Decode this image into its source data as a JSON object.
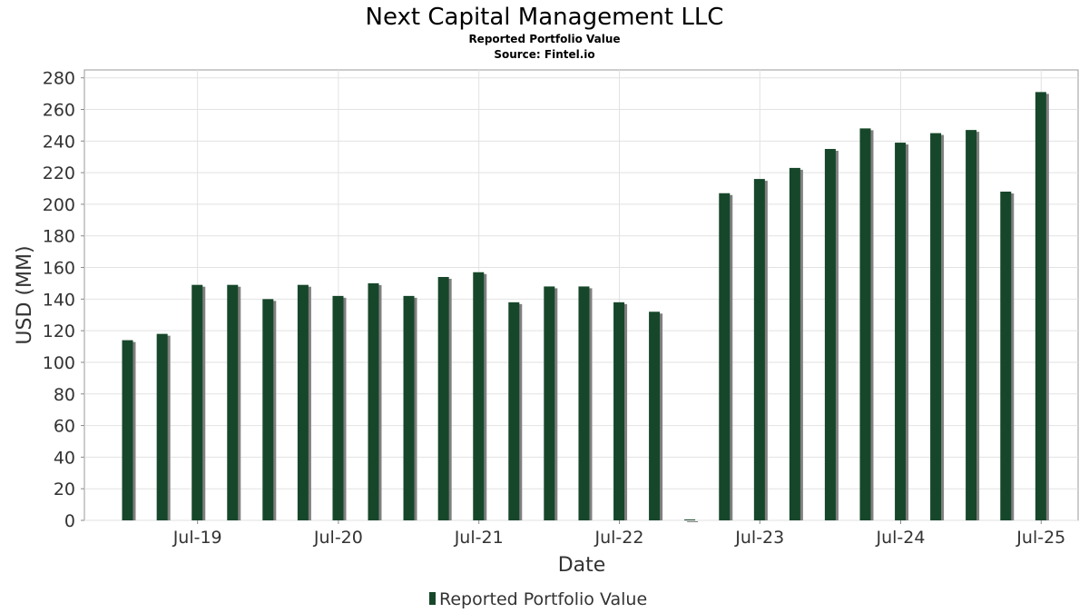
{
  "chart_data": {
    "type": "bar",
    "title": "Next Capital Management LLC",
    "subtitle": "Reported Portfolio Value",
    "source": "Source: Fintel.io",
    "xlabel": "Date",
    "ylabel": "USD (MM)",
    "ylim": [
      0,
      285
    ],
    "yticks": [
      0,
      20,
      40,
      60,
      80,
      100,
      120,
      140,
      160,
      180,
      200,
      220,
      240,
      260,
      280
    ],
    "x_range": [
      "2018-09-10",
      "2025-10-05"
    ],
    "xticks": [
      {
        "label": "Jul-19",
        "date": "2019-07-01"
      },
      {
        "label": "Jul-20",
        "date": "2020-07-01"
      },
      {
        "label": "Jul-21",
        "date": "2021-07-01"
      },
      {
        "label": "Jul-22",
        "date": "2022-07-01"
      },
      {
        "label": "Jul-23",
        "date": "2023-07-01"
      },
      {
        "label": "Jul-24",
        "date": "2024-07-01"
      },
      {
        "label": "Jul-25",
        "date": "2025-07-01"
      }
    ],
    "grid": true,
    "legend_position": "bottom-center",
    "series": [
      {
        "name": "Reported Portfolio Value",
        "color": "#17472a",
        "shadow_color": "#808080",
        "points": [
          {
            "date": "2018-12-31",
            "value": 114
          },
          {
            "date": "2019-03-31",
            "value": 118
          },
          {
            "date": "2019-06-30",
            "value": 149
          },
          {
            "date": "2019-09-30",
            "value": 149
          },
          {
            "date": "2019-12-31",
            "value": 140
          },
          {
            "date": "2020-03-31",
            "value": 149
          },
          {
            "date": "2020-06-30",
            "value": 142
          },
          {
            "date": "2020-09-30",
            "value": 150
          },
          {
            "date": "2020-12-31",
            "value": 142
          },
          {
            "date": "2021-03-31",
            "value": 154
          },
          {
            "date": "2021-06-30",
            "value": 157
          },
          {
            "date": "2021-09-30",
            "value": 138
          },
          {
            "date": "2021-12-31",
            "value": 148
          },
          {
            "date": "2022-03-31",
            "value": 148
          },
          {
            "date": "2022-06-30",
            "value": 138
          },
          {
            "date": "2022-09-30",
            "value": 132
          },
          {
            "date": "2022-12-31",
            "value": 0.5
          },
          {
            "date": "2023-03-31",
            "value": 207
          },
          {
            "date": "2023-06-30",
            "value": 216
          },
          {
            "date": "2023-09-30",
            "value": 223
          },
          {
            "date": "2023-12-31",
            "value": 235
          },
          {
            "date": "2024-03-31",
            "value": 248
          },
          {
            "date": "2024-06-30",
            "value": 239
          },
          {
            "date": "2024-09-30",
            "value": 245
          },
          {
            "date": "2024-12-31",
            "value": 247
          },
          {
            "date": "2025-03-31",
            "value": 208
          },
          {
            "date": "2025-06-30",
            "value": 271
          }
        ]
      }
    ]
  }
}
